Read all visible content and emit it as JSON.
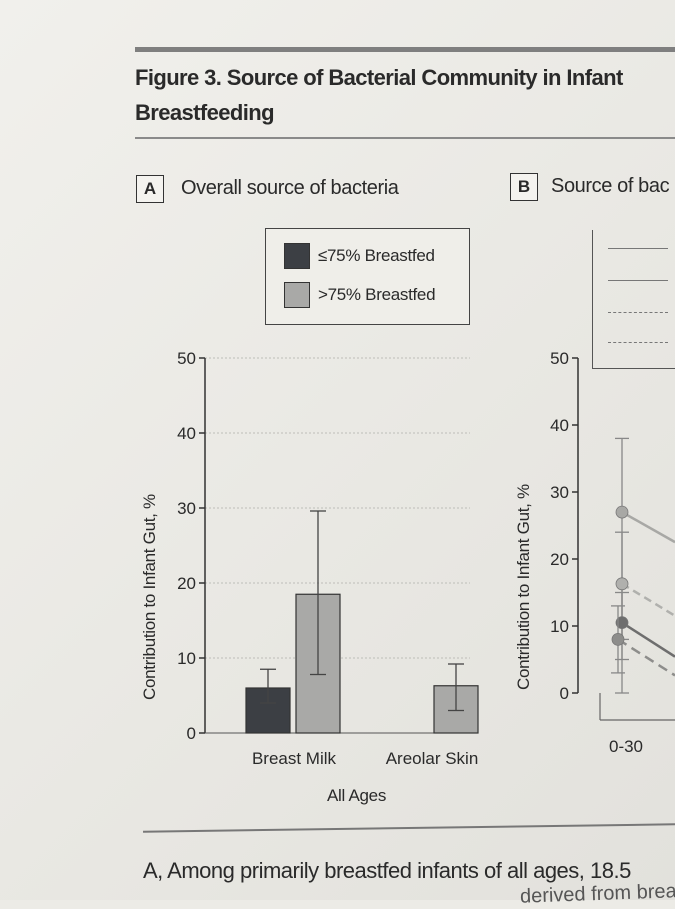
{
  "figure": {
    "title_line1": "Figure 3. Source of Bacterial Community in Infant",
    "title_line2": "Breastfeeding"
  },
  "panel_a": {
    "letter": "A",
    "title": "Overall source of bacteria"
  },
  "panel_b": {
    "letter": "B",
    "title": "Source of bac",
    "x_tick": "0-30"
  },
  "caption": {
    "line1": "A, Among primarily breastfed infants of all ages, 18.5",
    "line2": "derived from brea"
  },
  "colors": {
    "dark_bar": "#3c3f44",
    "light_bar": "#a9a9a7"
  },
  "chart_data": [
    {
      "type": "bar",
      "panel": "A",
      "title": "Overall source of bacteria",
      "ylabel": "Contribution to Infant Gut, %",
      "xlabel": "All Ages",
      "ylim": [
        0,
        50
      ],
      "yticks": [
        "0",
        "10",
        "20",
        "30",
        "40",
        "50"
      ],
      "categories": [
        "Breast Milk",
        "Areolar Skin"
      ],
      "legend": "top-center",
      "grid": "horizontal dotted",
      "series": [
        {
          "name": "≤75% Breastfed",
          "values": [
            6.0,
            null
          ],
          "err_low": [
            4.0,
            null
          ],
          "err_high": [
            8.5,
            null
          ]
        },
        {
          "name": ">75% Breastfed",
          "values": [
            18.5,
            6.3
          ],
          "err_low": [
            7.8,
            3.0
          ],
          "err_high": [
            29.6,
            9.2
          ]
        }
      ]
    },
    {
      "type": "line",
      "panel": "B",
      "title": "Source of bac",
      "ylabel": "Contribution to Infant Gut, %",
      "ylim": [
        0,
        50
      ],
      "yticks": [
        "0",
        "10",
        "20",
        "30",
        "40",
        "50"
      ],
      "x": [
        "0-30"
      ],
      "series": [
        {
          "values": [
            27.0
          ],
          "err_low": [
            0
          ],
          "err_high": [
            38.0
          ]
        },
        {
          "values": [
            16.3
          ],
          "err_low": [
            8.0
          ],
          "err_high": [
            24.0
          ]
        },
        {
          "values": [
            10.5
          ],
          "err_low": [
            5.0
          ],
          "err_high": [
            15.0
          ]
        },
        {
          "values": [
            8.0
          ],
          "err_low": [
            3.0
          ],
          "err_high": [
            13.0
          ]
        }
      ]
    }
  ]
}
